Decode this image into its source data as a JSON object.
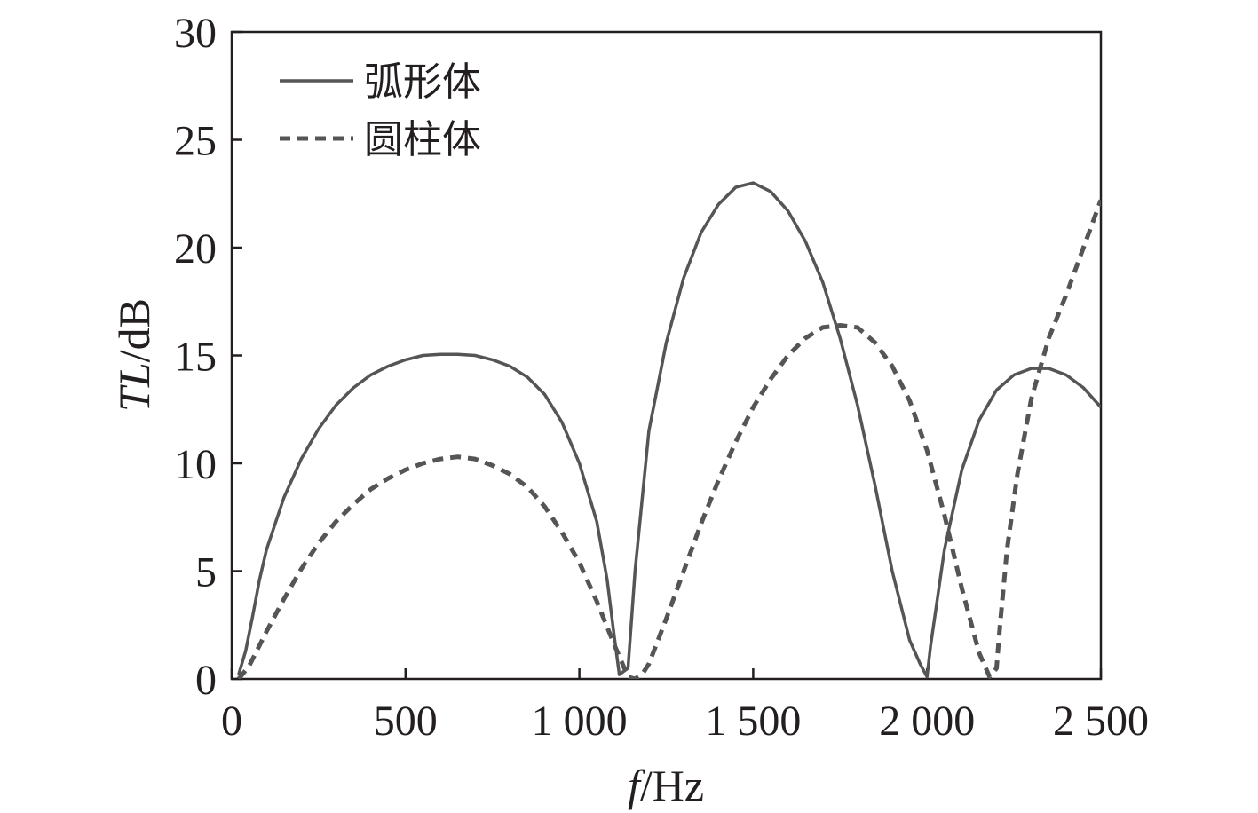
{
  "chart_data": {
    "type": "line",
    "xlabel_italic": "f",
    "xlabel_unit": "/Hz",
    "ylabel_italic": "TL",
    "ylabel_unit": "/dB",
    "xlim": [
      0,
      2500
    ],
    "ylim": [
      0,
      30
    ],
    "xticks": [
      0,
      500,
      1000,
      1500,
      2000,
      2500
    ],
    "xtick_labels": [
      "0",
      "500",
      "1 000",
      "1 500",
      "2 000",
      "2 500"
    ],
    "yticks": [
      0,
      5,
      10,
      15,
      20,
      25,
      30
    ],
    "ytick_labels": [
      "0",
      "5",
      "10",
      "15",
      "20",
      "25",
      "30"
    ],
    "grid": false,
    "legend_position": "top-left",
    "series": [
      {
        "name": "弧形体",
        "style": "solid",
        "color": "#555555",
        "x": [
          20,
          40,
          60,
          80,
          100,
          150,
          200,
          250,
          300,
          350,
          400,
          450,
          500,
          550,
          600,
          650,
          700,
          750,
          800,
          850,
          900,
          950,
          1000,
          1050,
          1080,
          1100,
          1115,
          1140,
          1160,
          1200,
          1250,
          1300,
          1350,
          1400,
          1450,
          1500,
          1550,
          1600,
          1650,
          1700,
          1750,
          1800,
          1850,
          1900,
          1950,
          1980,
          2000,
          2010,
          2050,
          2100,
          2150,
          2200,
          2250,
          2300,
          2350,
          2400,
          2450,
          2500
        ],
        "y": [
          0.2,
          1.3,
          2.9,
          4.6,
          6.0,
          8.4,
          10.2,
          11.6,
          12.7,
          13.5,
          14.1,
          14.5,
          14.8,
          15.0,
          15.05,
          15.05,
          15.0,
          14.8,
          14.5,
          14.0,
          13.2,
          11.9,
          10.0,
          7.3,
          4.6,
          2.0,
          0.2,
          0.5,
          5.0,
          11.5,
          15.6,
          18.6,
          20.7,
          22.0,
          22.8,
          23.0,
          22.6,
          21.7,
          20.3,
          18.4,
          15.8,
          12.7,
          9.0,
          5.0,
          1.8,
          0.7,
          0.1,
          1.5,
          6.0,
          9.7,
          12.0,
          13.4,
          14.1,
          14.4,
          14.4,
          14.1,
          13.5,
          12.6
        ]
      },
      {
        "name": "圆柱体",
        "style": "dashed",
        "color": "#555555",
        "x": [
          20,
          50,
          100,
          150,
          200,
          250,
          300,
          350,
          400,
          450,
          500,
          550,
          600,
          650,
          700,
          750,
          800,
          850,
          900,
          950,
          1000,
          1050,
          1100,
          1140,
          1160,
          1180,
          1200,
          1250,
          1300,
          1350,
          1400,
          1450,
          1500,
          1550,
          1600,
          1650,
          1700,
          1750,
          1800,
          1850,
          1900,
          1950,
          2000,
          2050,
          2100,
          2150,
          2180,
          2200,
          2210,
          2230,
          2260,
          2300,
          2350,
          2400,
          2450,
          2500
        ],
        "y": [
          0.0,
          0.6,
          2.2,
          3.7,
          5.1,
          6.3,
          7.3,
          8.1,
          8.8,
          9.3,
          9.7,
          10.0,
          10.2,
          10.3,
          10.2,
          9.9,
          9.5,
          8.9,
          8.0,
          6.8,
          5.4,
          3.6,
          1.6,
          0.1,
          0.0,
          0.2,
          0.7,
          2.8,
          5.0,
          7.2,
          9.2,
          11.0,
          12.6,
          13.9,
          15.0,
          15.8,
          16.3,
          16.4,
          16.3,
          15.6,
          14.5,
          12.9,
          10.6,
          7.6,
          4.2,
          1.2,
          0.1,
          0.5,
          2.5,
          6.0,
          9.5,
          13.0,
          15.8,
          17.8,
          20.0,
          22.2
        ]
      }
    ]
  }
}
